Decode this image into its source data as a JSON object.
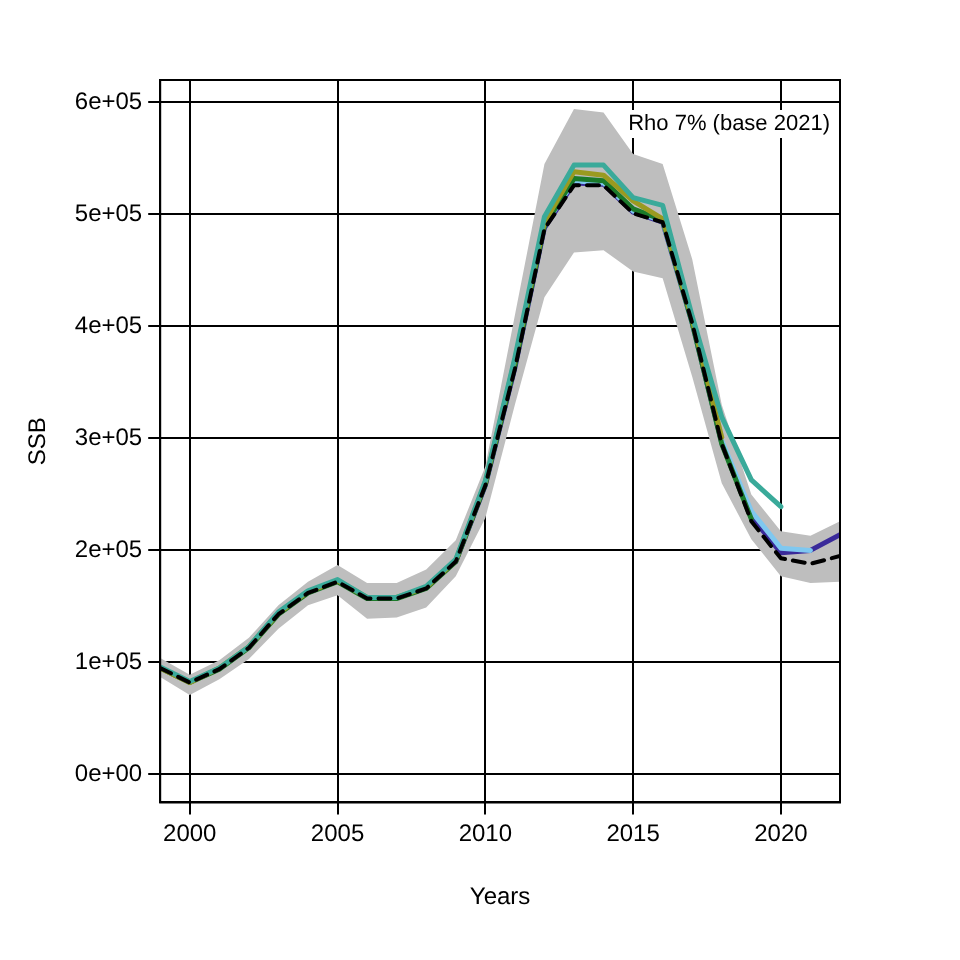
{
  "chart_data": {
    "type": "line",
    "xlabel": "Years",
    "ylabel": "SSB",
    "annotations": [
      "Rho 7% (base 2021)"
    ],
    "xlim": [
      1999,
      2022
    ],
    "xticks": [
      2000,
      2005,
      2010,
      2015,
      2020
    ],
    "ylim": [
      -25000,
      620000
    ],
    "yticks": [
      {
        "value": 0,
        "label": "0e+00"
      },
      {
        "value": 100000,
        "label": "1e+05"
      },
      {
        "value": 200000,
        "label": "2e+05"
      },
      {
        "value": 300000,
        "label": "3e+05"
      },
      {
        "value": 400000,
        "label": "4e+05"
      },
      {
        "value": 500000,
        "label": "5e+05"
      },
      {
        "value": 600000,
        "label": "6e+05"
      }
    ],
    "grid": true,
    "legend": false,
    "marker": "none",
    "line_style": "solid",
    "series": [
      {
        "color": "#3aaa9a",
        "x": [
          1999,
          2000,
          2001,
          2002,
          2003,
          2004,
          2005,
          2006,
          2007,
          2008,
          2009,
          2010,
          2011,
          2012,
          2013,
          2014,
          2015,
          2016,
          2017,
          2018,
          2019,
          2020
        ],
        "values": [
          96000,
          83000,
          95000,
          114000,
          145000,
          164000,
          174000,
          158000,
          158000,
          168000,
          192000,
          262000,
          372000,
          498000,
          544000,
          544000,
          515000,
          508000,
          409000,
          319000,
          263000,
          239000
        ]
      },
      {
        "color": "#9a9a20",
        "x": [
          1999,
          2000,
          2001,
          2002,
          2003,
          2004,
          2005,
          2006,
          2007,
          2008,
          2009,
          2010,
          2011,
          2012,
          2013,
          2014,
          2015,
          2016,
          2017,
          2018
        ],
        "values": [
          95000,
          82000,
          95000,
          114000,
          144000,
          163000,
          173000,
          158000,
          158000,
          167000,
          191000,
          261000,
          370000,
          493000,
          538000,
          535000,
          512000,
          496000,
          406000,
          301000
        ]
      },
      {
        "color": "#1a7a2a",
        "x": [
          1999,
          2000,
          2001,
          2002,
          2003,
          2004,
          2005,
          2006,
          2007,
          2008,
          2009,
          2010,
          2011,
          2012,
          2013,
          2014,
          2015,
          2016,
          2017,
          2018,
          2019
        ],
        "values": [
          95000,
          82000,
          94000,
          113000,
          143000,
          162000,
          172000,
          157000,
          157000,
          166000,
          190000,
          259000,
          365000,
          490000,
          532000,
          530000,
          505000,
          495000,
          403000,
          295000,
          228000
        ]
      },
      {
        "color": "#7fc8f0",
        "x": [
          2012,
          2013,
          2014,
          2015,
          2016,
          2017,
          2018,
          2019,
          2020,
          2021
        ],
        "values": [
          490000,
          530000,
          528000,
          503000,
          494000,
          403000,
          298000,
          235000,
          202000,
          200000
        ]
      },
      {
        "color": "#3a2a9a",
        "x": [
          2009,
          2010,
          2011,
          2012,
          2013,
          2014,
          2015,
          2016,
          2017,
          2018,
          2019,
          2020,
          2021,
          2022
        ],
        "values": [
          190000,
          258000,
          363000,
          488000,
          528000,
          527000,
          502000,
          493000,
          403000,
          296000,
          230000,
          198000,
          200000,
          214000
        ]
      },
      {
        "color": "#000000",
        "line_style": "dashed",
        "x": [
          1999,
          2000,
          2001,
          2002,
          2003,
          2004,
          2005,
          2006,
          2007,
          2008,
          2009,
          2010,
          2011,
          2012,
          2013,
          2014,
          2015,
          2016,
          2017,
          2018,
          2019,
          2020,
          2021,
          2022
        ],
        "values": [
          95000,
          82000,
          94000,
          113000,
          143000,
          162000,
          172000,
          157000,
          157000,
          166000,
          190000,
          258000,
          362000,
          487000,
          526000,
          526000,
          501000,
          493000,
          403000,
          295000,
          226000,
          193000,
          188000,
          195000
        ],
        "lower": [
          87000,
          71000,
          85000,
          103000,
          130000,
          151000,
          160000,
          139000,
          140000,
          149000,
          177000,
          229000,
          330000,
          426000,
          466000,
          468000,
          449000,
          443000,
          355000,
          260000,
          210000,
          177000,
          171000,
          172000
        ],
        "upper": [
          104000,
          89000,
          102000,
          122000,
          151000,
          172000,
          187000,
          171000,
          171000,
          183000,
          209000,
          275000,
          410000,
          545000,
          594000,
          591000,
          554000,
          545000,
          460000,
          330000,
          250000,
          217000,
          213000,
          226000
        ]
      }
    ]
  }
}
